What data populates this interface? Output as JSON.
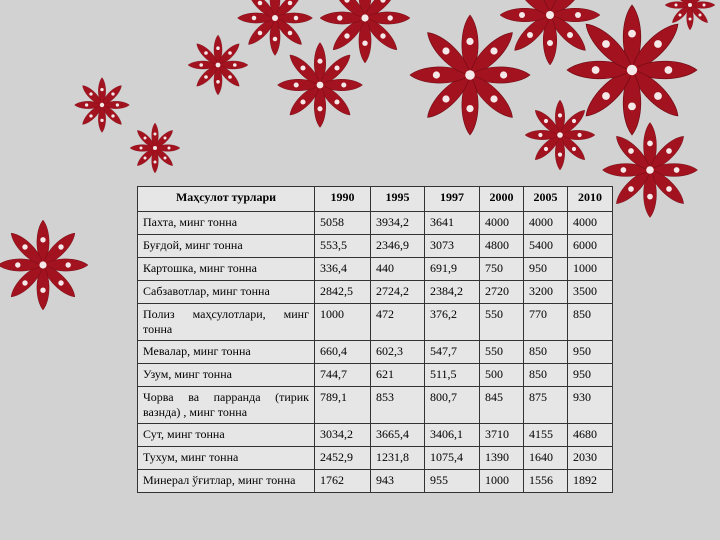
{
  "table": {
    "header": [
      "Маҳсулот турлари",
      "1990",
      "1995",
      "1997",
      "2000",
      "2005",
      "2010"
    ],
    "rows": [
      [
        "Пахта, минг тонна",
        "5058",
        "3934,2",
        "3641",
        "4000",
        "4000",
        "4000"
      ],
      [
        "Буғдой, минг тонна",
        "553,5",
        "2346,9",
        "3073",
        "4800",
        "5400",
        "6000"
      ],
      [
        "Картошка, минг тонна",
        "336,4",
        "440",
        "691,9",
        "750",
        "950",
        "1000"
      ],
      [
        "Сабзавотлар, минг тонна",
        "2842,5",
        "2724,2",
        "2384,2",
        "2720",
        "3200",
        "3500"
      ],
      [
        "Полиз маҳсулотлари, минг тонна",
        "1000",
        "472",
        "376,2",
        "550",
        "770",
        "850"
      ],
      [
        "Мевалар, минг тонна",
        "660,4",
        "602,3",
        "547,7",
        "550",
        "850",
        "950"
      ],
      [
        "Узум, минг тонна",
        "744,7",
        "621",
        "511,5",
        "500",
        "850",
        "950"
      ],
      [
        "Чорва ва парранда (тирик вазнда) , минг тонна",
        "789,1",
        "853",
        "800,7",
        "845",
        "875",
        "930"
      ],
      [
        "Сут, минг тонна",
        "3034,2",
        "3665,4",
        "3406,1",
        "3710",
        "4155",
        "4680"
      ],
      [
        "Тухум, минг тонна",
        "2452,9",
        "1231,8",
        "1075,4",
        "1390",
        "1640",
        "2030"
      ],
      [
        "Минерал ўғитлар, минг тонна",
        "1762",
        "943",
        "955",
        "1000",
        "1556",
        "1892"
      ]
    ]
  }
}
